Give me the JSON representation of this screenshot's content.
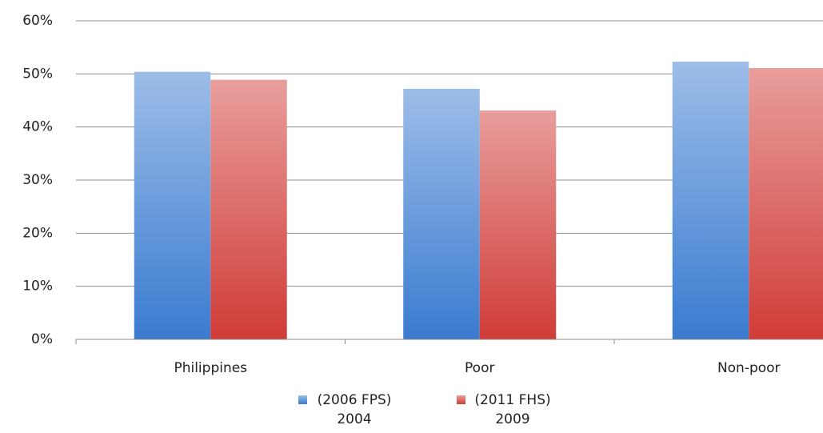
{
  "chart_data": {
    "type": "bar",
    "categories": [
      "Philippines",
      "Poor",
      "Non-poor"
    ],
    "series": [
      {
        "name": "(2006 FPS) 2004",
        "color": "#3a7bd0",
        "values": [
          50.4,
          47.2,
          52.3
        ]
      },
      {
        "name": "(2011 FHS) 2009",
        "color": "#d03c38",
        "values": [
          48.9,
          43.1,
          51.1
        ]
      }
    ],
    "ylim": [
      0,
      60
    ],
    "yticks": [
      {
        "value": 0,
        "label": "0%"
      },
      {
        "value": 10,
        "label": "10%"
      },
      {
        "value": 20,
        "label": "20%"
      },
      {
        "value": 30,
        "label": "30%"
      },
      {
        "value": 40,
        "label": "40%"
      },
      {
        "value": 50,
        "label": "50%"
      },
      {
        "value": 60,
        "label": "60%"
      }
    ],
    "grid": true,
    "legend": "bottom"
  }
}
